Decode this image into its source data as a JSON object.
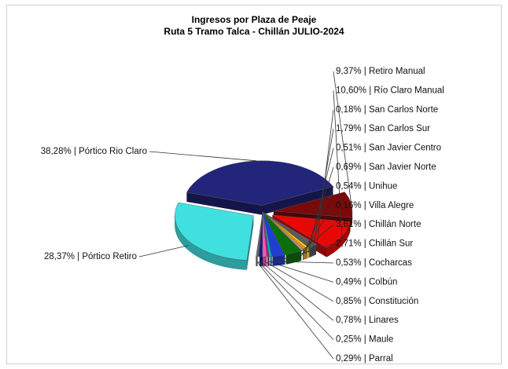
{
  "chart_data": {
    "type": "pie",
    "title": "Ingresos por Plaza de Peaje",
    "subtitle": "Ruta 5 Tramo Talca - Chillán JULIO-2024",
    "slices": [
      {
        "label": "38,28% | Pórtico Rio Claro",
        "name": "Pórtico Rio Claro",
        "value": 38.28,
        "color": "#22257a",
        "exploded": true
      },
      {
        "label": "9,37% | Retiro Manual",
        "name": "Retiro Manual",
        "value": 9.37,
        "color": "#7a0a0a",
        "exploded": true
      },
      {
        "label": "10,60% | Río Claro Manual",
        "name": "Río Claro Manual",
        "value": 10.6,
        "color": "#e80808",
        "exploded": true
      },
      {
        "label": "0,18% | San Carlos Norte",
        "name": "San Carlos Norte",
        "value": 0.18,
        "color": "#c8c8c8",
        "exploded": false
      },
      {
        "label": "1,79% | San Carlos Sur",
        "name": "San Carlos Sur",
        "value": 1.79,
        "color": "#5a5a5a",
        "exploded": false
      },
      {
        "label": "0,51% | San Javier Centro",
        "name": "San Javier Centro",
        "value": 0.51,
        "color": "#ffe600",
        "exploded": false
      },
      {
        "label": "0,69% | San Javier Norte",
        "name": "San Javier Norte",
        "value": 0.69,
        "color": "#ff8c00",
        "exploded": false
      },
      {
        "label": "0,54% | Unihue",
        "name": "Unihue",
        "value": 0.54,
        "color": "#a0a0a0",
        "exploded": false
      },
      {
        "label": "0,16% | Villa Alegre",
        "name": "Villa Alegre",
        "value": 0.16,
        "color": "#6b3a1e",
        "exploded": false
      },
      {
        "label": "3,61% | Chillán Norte",
        "name": "Chillán Norte",
        "value": 3.61,
        "color": "#0a6e0a",
        "exploded": false
      },
      {
        "label": "2,71% | Chillán Sur",
        "name": "Chillán Sur",
        "value": 2.71,
        "color": "#1f3fd0",
        "exploded": false
      },
      {
        "label": "0,53% | Cocharcas",
        "name": "Cocharcas",
        "value": 0.53,
        "color": "#00b0b0",
        "exploded": false
      },
      {
        "label": "0,49% | Colbún",
        "name": "Colbún",
        "value": 0.49,
        "color": "#9a1fa0",
        "exploded": false
      },
      {
        "label": "0,85% | Constitución",
        "name": "Constitución",
        "value": 0.85,
        "color": "#ff55aa",
        "exploded": false
      },
      {
        "label": "0,78% | Linares",
        "name": "Linares",
        "value": 0.78,
        "color": "#1a1a8a",
        "exploded": false
      },
      {
        "label": "0,25% | Maule",
        "name": "Maule",
        "value": 0.25,
        "color": "#606060",
        "exploded": false
      },
      {
        "label": "0,29% | Parral",
        "name": "Parral",
        "value": 0.29,
        "color": "#707070",
        "exploded": false
      },
      {
        "label": "28,37% | Pórtico Retiro",
        "name": "Pórtico Retiro",
        "value": 28.37,
        "color": "#40e0e0",
        "exploded": true
      }
    ],
    "legend": "none",
    "style": "3d-exploded-pie"
  }
}
